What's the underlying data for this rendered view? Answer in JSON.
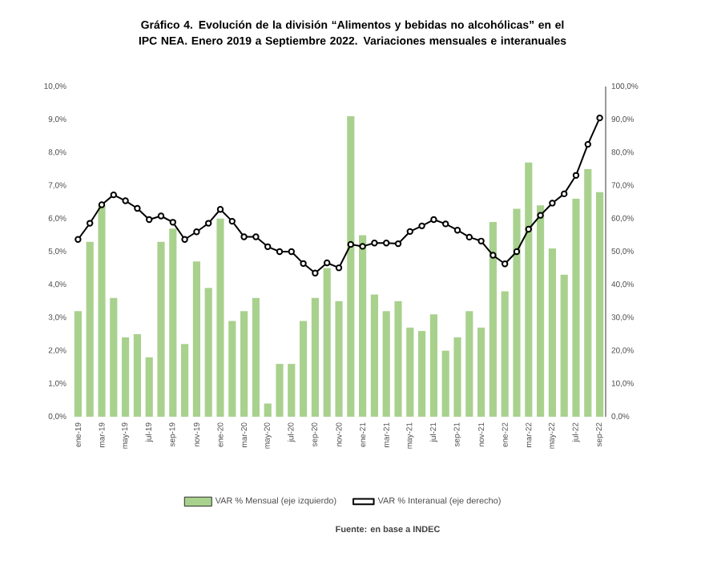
{
  "chart_data": {
    "type": "bar",
    "title": "Gráfico 4. Evolución de la división “Alimentos y bebidas no alcohólicas” en el IPC NEA. Enero 2019 a Septiembre 2022. Variaciones mensuales e interanuales",
    "categories": [
      "ene-19",
      null,
      "mar-19",
      null,
      "may-19",
      null,
      "jul-19",
      null,
      "sep-19",
      null,
      "nov-19",
      null,
      "ene-20",
      null,
      "mar-20",
      null,
      "may-20",
      null,
      "jul-20",
      null,
      "sep-20",
      null,
      "nov-20",
      null,
      "ene-21",
      null,
      "mar-21",
      null,
      "may-21",
      null,
      "jul-21",
      null,
      "sep-21",
      null,
      "nov-21",
      null,
      "ene-22",
      null,
      "mar-22",
      null,
      "may-22",
      null,
      "jul-22",
      null,
      "sep-22"
    ],
    "series": [
      {
        "name": "VAR % Mensual (eje izquierdo)",
        "color": "#a9d18e",
        "values": [
          3.2,
          5.3,
          6.4,
          3.6,
          2.4,
          2.5,
          1.8,
          5.3,
          5.7,
          2.2,
          4.7,
          3.9,
          6.0,
          2.9,
          3.2,
          3.6,
          0.4,
          1.6,
          1.6,
          2.9,
          3.6,
          4.5,
          3.5,
          9.1,
          5.5,
          3.7,
          3.2,
          3.5,
          2.7,
          2.6,
          3.1,
          2.0,
          2.4,
          3.2,
          2.7,
          5.9,
          3.8,
          6.3,
          7.7,
          6.4,
          5.1,
          4.3,
          6.6,
          7.5,
          6.8
        ]
      },
      {
        "name": "VAR % Interanual (eje derecho)",
        "type": "line",
        "axis": "y2",
        "color": "#000000",
        "values": [
          53.7,
          58.6,
          64.2,
          67.2,
          65.4,
          63.1,
          59.7,
          60.8,
          58.9,
          53.7,
          56.0,
          58.6,
          62.8,
          59.2,
          54.5,
          54.5,
          51.5,
          50.0,
          50.0,
          46.4,
          43.5,
          46.6,
          45.1,
          52.2,
          51.6,
          52.6,
          52.6,
          52.4,
          56.1,
          57.8,
          59.7,
          58.4,
          56.5,
          54.4,
          53.2,
          48.9,
          46.3,
          50.0,
          56.8,
          61.0,
          64.7,
          67.5,
          73.1,
          82.5,
          90.5
        ]
      }
    ],
    "ylim": [
      0,
      10
    ],
    "yticks": [
      {
        "value": 0,
        "label": "0,0%"
      },
      {
        "value": 1,
        "label": "1,0%"
      },
      {
        "value": 2,
        "label": "2,0%"
      },
      {
        "value": 3,
        "label": "3,0%"
      },
      {
        "value": 4,
        "label": "4,0%"
      },
      {
        "value": 5,
        "label": "5,0%"
      },
      {
        "value": 6,
        "label": "6,0%"
      },
      {
        "value": 7,
        "label": "7,0%"
      },
      {
        "value": 8,
        "label": "8,0%"
      },
      {
        "value": 9,
        "label": "9,0%"
      },
      {
        "value": 10,
        "label": "10,0%"
      }
    ],
    "y2lim": [
      0,
      100
    ],
    "y2ticks": [
      {
        "value": 0,
        "label": "0,0%"
      },
      {
        "value": 10,
        "label": "10,0%"
      },
      {
        "value": 20,
        "label": "20,0%"
      },
      {
        "value": 30,
        "label": "30,0%"
      },
      {
        "value": 40,
        "label": "40,0%"
      },
      {
        "value": 50,
        "label": "50,0%"
      },
      {
        "value": 60,
        "label": "60,0%"
      },
      {
        "value": 70,
        "label": "70,0%"
      },
      {
        "value": 80,
        "label": "80,0%"
      },
      {
        "value": 90,
        "label": "90,0%"
      },
      {
        "value": 100,
        "label": "100,0%"
      }
    ],
    "marker": "circle",
    "legend": "bottom",
    "annotations": [
      "Fuente: en base a INDEC"
    ]
  }
}
